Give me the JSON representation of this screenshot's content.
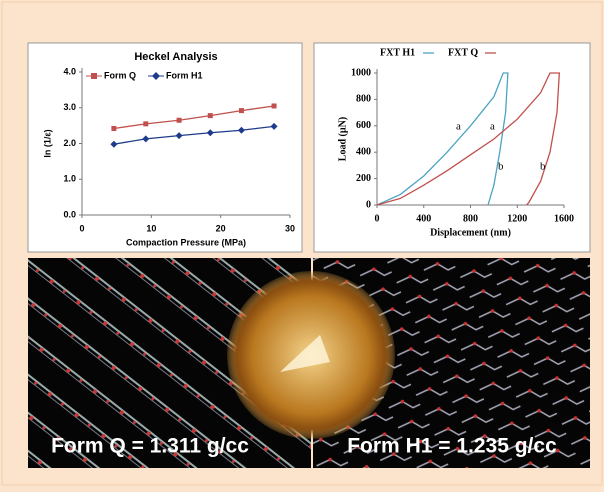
{
  "chart_data": [
    {
      "type": "line",
      "title": "Heckel  Analysis",
      "x_label": "Compaction Pressure (MPa)",
      "y_label": "ln (1/ε)",
      "x": [
        4.6,
        9.2,
        14,
        18.5,
        23,
        27.7
      ],
      "series": [
        {
          "name": "Form Q",
          "color": "#c0504d",
          "marker": "square",
          "values": [
            2.42,
            2.55,
            2.65,
            2.78,
            2.92,
            3.05
          ]
        },
        {
          "name": "Form H1",
          "color": "#1f3c8c",
          "marker": "diamond",
          "values": [
            1.98,
            2.13,
            2.22,
            2.3,
            2.37,
            2.48
          ]
        }
      ],
      "xlim": [
        0,
        30
      ],
      "xticks": [
        0,
        10,
        20,
        30
      ],
      "ylim": [
        0,
        4
      ],
      "yticks": [
        {
          "value": 0,
          "label": "0.0"
        },
        {
          "value": 1,
          "label": "1.0"
        },
        {
          "value": 2,
          "label": "2.0"
        },
        {
          "value": 3,
          "label": "3.0"
        },
        {
          "value": 4,
          "label": "4.0"
        }
      ],
      "legend": "top-left"
    },
    {
      "type": "line",
      "x_label": "Displacement (nm)",
      "y_label": "Load (µN)",
      "series": [
        {
          "name": "FXT H1",
          "color": "#4ba3c3",
          "x": [
            0,
            200,
            400,
            600,
            800,
            1000,
            1080,
            1120,
            1100,
            1050,
            1000,
            950
          ],
          "values": [
            0,
            80,
            220,
            400,
            600,
            820,
            1000,
            1000,
            700,
            400,
            150,
            0
          ]
        },
        {
          "name": "FXT Q",
          "color": "#c0504d",
          "x": [
            0,
            200,
            400,
            600,
            800,
            1000,
            1200,
            1400,
            1480,
            1560,
            1540,
            1480,
            1400,
            1300,
            1280
          ],
          "values": [
            0,
            50,
            150,
            260,
            380,
            500,
            650,
            850,
            1000,
            1000,
            700,
            400,
            180,
            20,
            0
          ]
        }
      ],
      "annotations": [
        "a",
        "a",
        "b",
        "b"
      ],
      "xlim": [
        0,
        1600
      ],
      "xticks": [
        0,
        400,
        800,
        1200,
        1600
      ],
      "ylim": [
        0,
        1000
      ],
      "yticks": [
        0,
        200,
        400,
        600,
        800,
        1000
      ],
      "legend": "top"
    }
  ],
  "captions": [
    "Form Q = 1.311 g/cc",
    "Form  H1 = 1.235 g/cc"
  ]
}
